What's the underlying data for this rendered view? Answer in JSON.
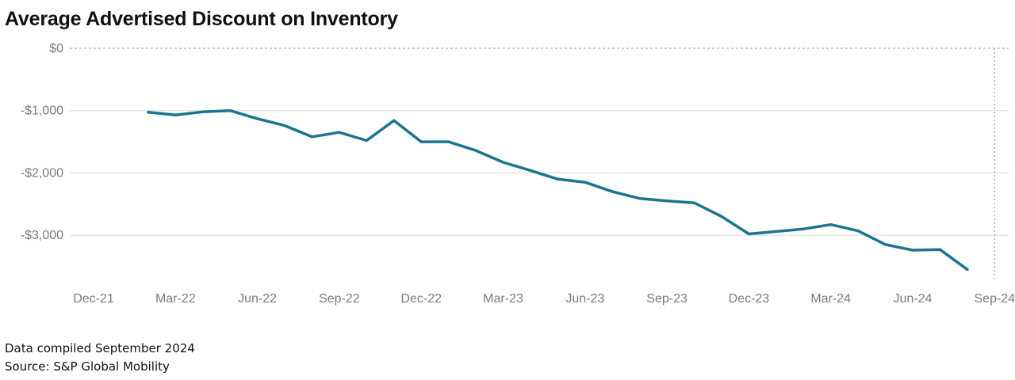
{
  "chart_data": {
    "type": "line",
    "title": "Average Advertised Discount on Inventory",
    "xlabel": "",
    "ylabel": "",
    "x_ticks": [
      "Dec-21",
      "Mar-22",
      "Jun-22",
      "Sep-22",
      "Dec-22",
      "Mar-23",
      "Jun-23",
      "Sep-23",
      "Dec-23",
      "Mar-24",
      "Jun-24",
      "Sep-24"
    ],
    "y_ticks": [
      "$0",
      "-$1,000",
      "-$2,000",
      "-$3,000"
    ],
    "y_tick_values": [
      0,
      -1000,
      -2000,
      -3000
    ],
    "ylim": [
      -3700,
      100
    ],
    "grid": true,
    "reference_line_at": "Sep-24",
    "series": [
      {
        "color": "#1b7591",
        "x": [
          "Feb-22",
          "Mar-22",
          "Apr-22",
          "May-22",
          "Jun-22",
          "Jul-22",
          "Aug-22",
          "Sep-22",
          "Oct-22",
          "Nov-22",
          "Dec-22",
          "Jan-23",
          "Feb-23",
          "Mar-23",
          "Apr-23",
          "May-23",
          "Jun-23",
          "Jul-23",
          "Aug-23",
          "Sep-23",
          "Oct-23",
          "Nov-23",
          "Dec-23",
          "Jan-24",
          "Feb-24",
          "Mar-24",
          "Apr-24",
          "May-24",
          "Jun-24",
          "Jul-24",
          "Aug-24"
        ],
        "values": [
          -1025,
          -1070,
          -1020,
          -1000,
          -1130,
          -1240,
          -1420,
          -1350,
          -1480,
          -1160,
          -1500,
          -1500,
          -1640,
          -1830,
          -1960,
          -2100,
          -2150,
          -2300,
          -2410,
          -2450,
          -2480,
          -2700,
          -2980,
          -2940,
          -2900,
          -2830,
          -2930,
          -3150,
          -3240,
          -3230,
          -3550
        ]
      }
    ]
  },
  "footnotes": {
    "compiled": "Data compiled September 2024",
    "source": "Source: S&P Global Mobility"
  }
}
